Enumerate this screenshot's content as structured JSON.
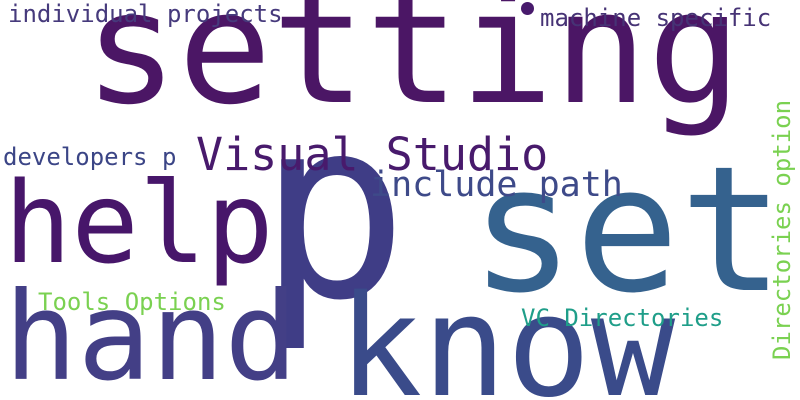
{
  "words": [
    {
      "text": "setting",
      "color": "#4b1665"
    },
    {
      "text": "p",
      "color": "#3f3d86"
    },
    {
      "text": "set",
      "color": "#35628e"
    },
    {
      "text": "know",
      "color": "#3a4b8a"
    },
    {
      "text": "hand",
      "color": "#433f86"
    },
    {
      "text": "help",
      "color": "#47166a"
    },
    {
      "text": "Visual Studio",
      "color": "#481a6c"
    },
    {
      "text": "include path",
      "color": "#3e4a89"
    },
    {
      "text": "individual projects",
      "color": "#463a7c"
    },
    {
      "text": "machine specific",
      "color": "#463375"
    },
    {
      "text": "developers p",
      "color": "#3b4586"
    },
    {
      "text": "Tools Options",
      "color": "#7ad151"
    },
    {
      "text": "VC Directories",
      "color": "#1f9e89"
    },
    {
      "text": "Directories option",
      "color": "#7ad151"
    }
  ],
  "dot": {
    "color": "#481a6c"
  }
}
